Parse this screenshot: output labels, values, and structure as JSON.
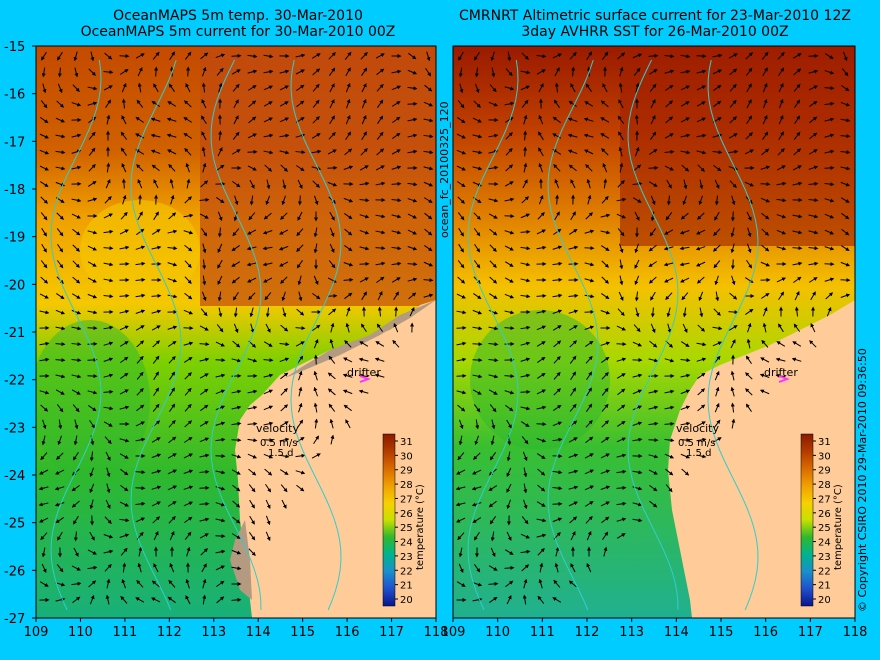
{
  "left_panel": {
    "title_line1": "OceanMAPS 5m temp. 30-Mar-2010",
    "title_line2": "OceanMAPS 5m current for 30-Mar-2010 00Z"
  },
  "right_panel": {
    "title_line1": "CMRNRT Altimetric surface current for 23-Mar-2010 12Z",
    "title_line2": "3day AVHRR SST for 26-Mar-2010 00Z"
  },
  "map_axes": {
    "x_ticks": [
      "109",
      "110",
      "111",
      "112",
      "113",
      "114",
      "115",
      "116",
      "117",
      "118"
    ],
    "y_ticks": [
      "-15",
      "-16",
      "-17",
      "-18",
      "-19",
      "-20",
      "-21",
      "-22",
      "-23",
      "-24",
      "-25",
      "-26",
      "-27"
    ],
    "lon_range": [
      109,
      118
    ],
    "lat_range": [
      -27,
      -15
    ]
  },
  "labels": {
    "drifter": "drifter",
    "velocity": "velocity",
    "velocity_scale": "0.5 m/s",
    "velocity_days": "1.5 d",
    "colorbar_label": "temperature (°C)",
    "run_id": "ocean_fc_20100325_120",
    "copyright": "© Copyright CSIRO 2010   29-Mar-2010 09:36:50"
  },
  "colorbar": {
    "ticks": [
      "31",
      "30",
      "29",
      "28",
      "27",
      "26",
      "25",
      "24",
      "23",
      "22",
      "21",
      "20"
    ],
    "colors": [
      "#8b1a00",
      "#b23c00",
      "#d96a00",
      "#f0a000",
      "#f7d000",
      "#c8e000",
      "#7ed000",
      "#2eb82e",
      "#00b38f",
      "#1a8fcc",
      "#1f4fcc",
      "#0a148c"
    ]
  },
  "colors": {
    "background": "#00ccff",
    "land": "#ffcc99",
    "coast_contour": "#33cccc",
    "drifter": "#ff33ff",
    "grey_shelf": "#b39a80"
  }
}
